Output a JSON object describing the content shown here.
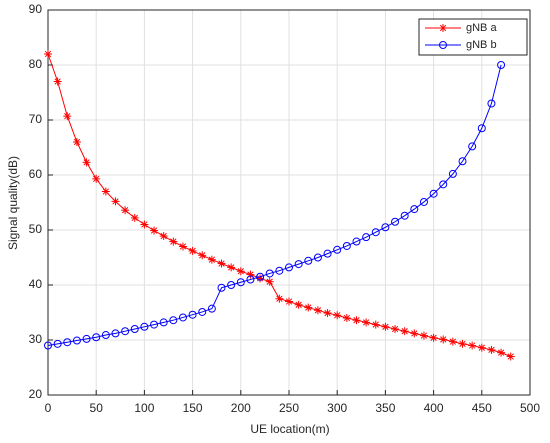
{
  "chart_data": {
    "type": "line",
    "xlabel": "UE location(m)",
    "ylabel": "Signal quality(dB)",
    "xlim": [
      0,
      500
    ],
    "xticks": [
      0,
      50,
      100,
      150,
      200,
      250,
      300,
      350,
      400,
      450,
      500
    ],
    "ylim": [
      20,
      90
    ],
    "yticks": [
      20,
      30,
      40,
      50,
      60,
      70,
      80,
      90
    ],
    "grid": true,
    "legend": "upper right",
    "series": [
      {
        "name": "gNB a",
        "color": "#ff0000",
        "marker": "asterisk",
        "x": [
          0,
          10,
          20,
          30,
          40,
          50,
          60,
          70,
          80,
          90,
          100,
          110,
          120,
          130,
          140,
          150,
          160,
          170,
          180,
          190,
          200,
          210,
          220,
          230,
          240,
          250,
          260,
          270,
          280,
          290,
          300,
          310,
          320,
          330,
          340,
          350,
          360,
          370,
          380,
          390,
          400,
          410,
          420,
          430,
          440,
          450,
          460,
          470,
          480
        ],
        "values": [
          82,
          77,
          70.7,
          66,
          62.3,
          59.3,
          57,
          55.2,
          53.6,
          52.2,
          51,
          49.9,
          48.9,
          47.9,
          47,
          46.2,
          45.4,
          44.6,
          43.9,
          43.2,
          42.5,
          41.9,
          41.2,
          40.6,
          37.5,
          37,
          36.4,
          35.9,
          35.4,
          34.9,
          34.5,
          34,
          33.6,
          33.2,
          32.8,
          32.4,
          32,
          31.6,
          31.2,
          30.8,
          30.4,
          30.1,
          29.7,
          29.3,
          29,
          28.6,
          28.2,
          27.7,
          27
        ]
      },
      {
        "name": "gNB b",
        "color": "#0000ff",
        "marker": "circle",
        "x": [
          0,
          10,
          20,
          30,
          40,
          50,
          60,
          70,
          80,
          90,
          100,
          110,
          120,
          130,
          140,
          150,
          160,
          170,
          180,
          190,
          200,
          210,
          220,
          230,
          240,
          250,
          260,
          270,
          280,
          290,
          300,
          310,
          320,
          330,
          340,
          350,
          360,
          370,
          380,
          390,
          400,
          410,
          420,
          430,
          440,
          450,
          460,
          470
        ],
        "values": [
          29,
          29.3,
          29.6,
          29.9,
          30.2,
          30.5,
          30.9,
          31.2,
          31.6,
          32,
          32.4,
          32.8,
          33.2,
          33.6,
          34.1,
          34.6,
          35.1,
          35.7,
          39.5,
          40,
          40.5,
          41,
          41.5,
          42.1,
          42.6,
          43.2,
          43.8,
          44.4,
          45,
          45.7,
          46.4,
          47.1,
          47.9,
          48.7,
          49.6,
          50.5,
          51.5,
          52.6,
          53.8,
          55.1,
          56.6,
          58.3,
          60.2,
          62.5,
          65.2,
          68.5,
          73,
          80
        ]
      }
    ]
  }
}
